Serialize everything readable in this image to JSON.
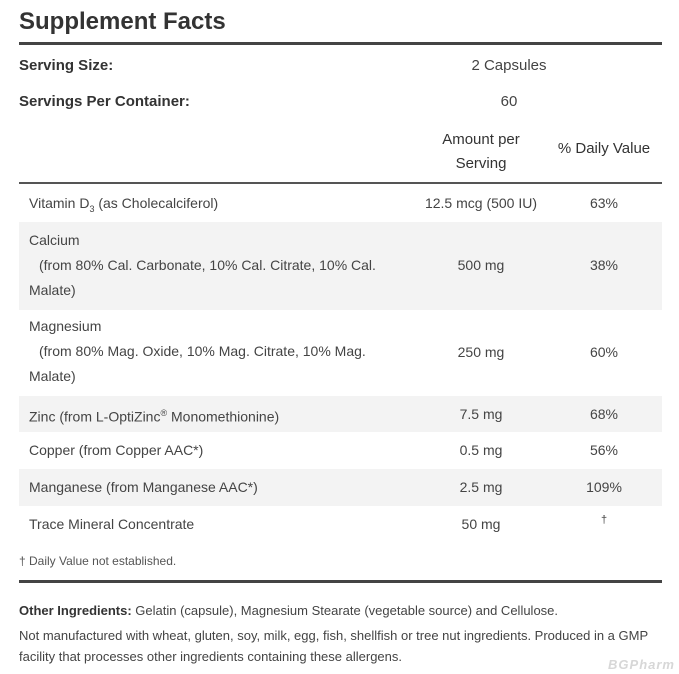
{
  "title": "Supplement Facts",
  "serving_size": {
    "label": "Serving Size:",
    "value": "2 Capsules"
  },
  "servings_per_container": {
    "label": "Servings Per Container:",
    "value": "60"
  },
  "columns": {
    "amount_line1": "Amount per",
    "amount_line2": "Serving",
    "daily_value": "% Daily Value"
  },
  "rows": [
    {
      "name_main": "Vitamin D",
      "name_sub": "3",
      "name_rest": " (as Cholecalciferol)",
      "amount": "12.5 mcg (500 IU)",
      "dv": "63%"
    },
    {
      "name": "Calcium",
      "detail": "(from 80% Cal. Carbonate, 10% Cal. Citrate, 10% Cal.",
      "detail_end": "Malate)",
      "amount": "500 mg",
      "dv": "38%"
    },
    {
      "name": "Magnesium",
      "detail": "(from 80% Mag. Oxide, 10% Mag. Citrate, 10% Mag.",
      "detail_end": "Malate)",
      "amount": "250 mg",
      "dv": "60%"
    },
    {
      "name_main": "Zinc (from L-OptiZinc",
      "name_sup": "®",
      "name_rest": " Monomethionine)",
      "amount": "7.5 mg",
      "dv": "68%"
    },
    {
      "name": "Copper (from Copper AAC*)",
      "amount": "0.5 mg",
      "dv": "56%"
    },
    {
      "name": "Manganese (from Manganese AAC*)",
      "amount": "2.5 mg",
      "dv": "109%"
    },
    {
      "name": "Trace Mineral Concentrate",
      "amount": "50 mg",
      "dv": "†"
    }
  ],
  "footnote": "† Daily Value not established.",
  "other_ingredients": {
    "label": "Other Ingredients:",
    "text": " Gelatin (capsule), Magnesium Stearate (vegetable source) and Cellulose."
  },
  "allergen_note": "Not manufactured with wheat, gluten, soy, milk, egg, fish, shellfish or tree nut ingredients. Produced in a GMP facility that processes other ingredients containing these allergens.",
  "watermark": "BGPharm"
}
